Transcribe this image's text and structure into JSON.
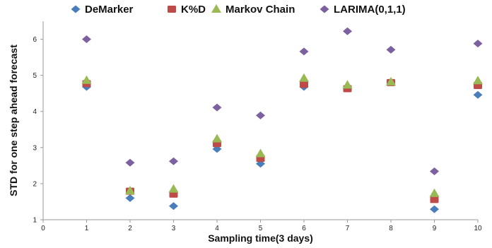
{
  "chart_data": {
    "type": "scatter",
    "title": "",
    "xlabel": "Sampling time(3 days)",
    "ylabel": "STD for one step ahead forecast",
    "xlim": [
      0,
      10
    ],
    "ylim": [
      1,
      6.5
    ],
    "xticks": [
      "0",
      "1",
      "2",
      "3",
      "4",
      "5",
      "6",
      "7",
      "8",
      "9",
      "10"
    ],
    "yticks": [
      "1",
      "2",
      "3",
      "4",
      "5",
      "6"
    ],
    "grid": false,
    "legend_position": "top",
    "series": [
      {
        "name": "DeMarker",
        "color": "#4a7ebb",
        "marker": "diamond",
        "x": [
          1,
          2,
          3,
          4,
          5,
          6,
          7,
          8,
          9,
          10
        ],
        "y": [
          4.68,
          1.6,
          1.38,
          2.96,
          2.55,
          4.68,
          4.65,
          4.82,
          1.29,
          4.46
        ]
      },
      {
        "name": "K%D",
        "color": "#be4b48",
        "marker": "square",
        "x": [
          1,
          2,
          3,
          4,
          5,
          6,
          7,
          8,
          9,
          10
        ],
        "y": [
          4.77,
          1.79,
          1.71,
          3.11,
          2.7,
          4.75,
          4.63,
          4.8,
          1.56,
          4.72
        ]
      },
      {
        "name": "Markov Chain",
        "color": "#98b954",
        "marker": "triangle",
        "x": [
          1,
          2,
          3,
          4,
          5,
          6,
          7,
          8,
          9,
          10
        ],
        "y": [
          4.86,
          1.8,
          1.85,
          3.24,
          2.83,
          4.92,
          4.73,
          4.82,
          1.73,
          4.85
        ]
      },
      {
        "name": "LARIMA(0,1,1)",
        "color": "#7d60a0",
        "marker": "diamond",
        "x": [
          1,
          2,
          3,
          4,
          5,
          6,
          7,
          8,
          9,
          10
        ],
        "y": [
          6.0,
          2.58,
          2.62,
          4.11,
          3.89,
          5.66,
          6.22,
          5.71,
          2.34,
          5.88
        ]
      }
    ]
  }
}
